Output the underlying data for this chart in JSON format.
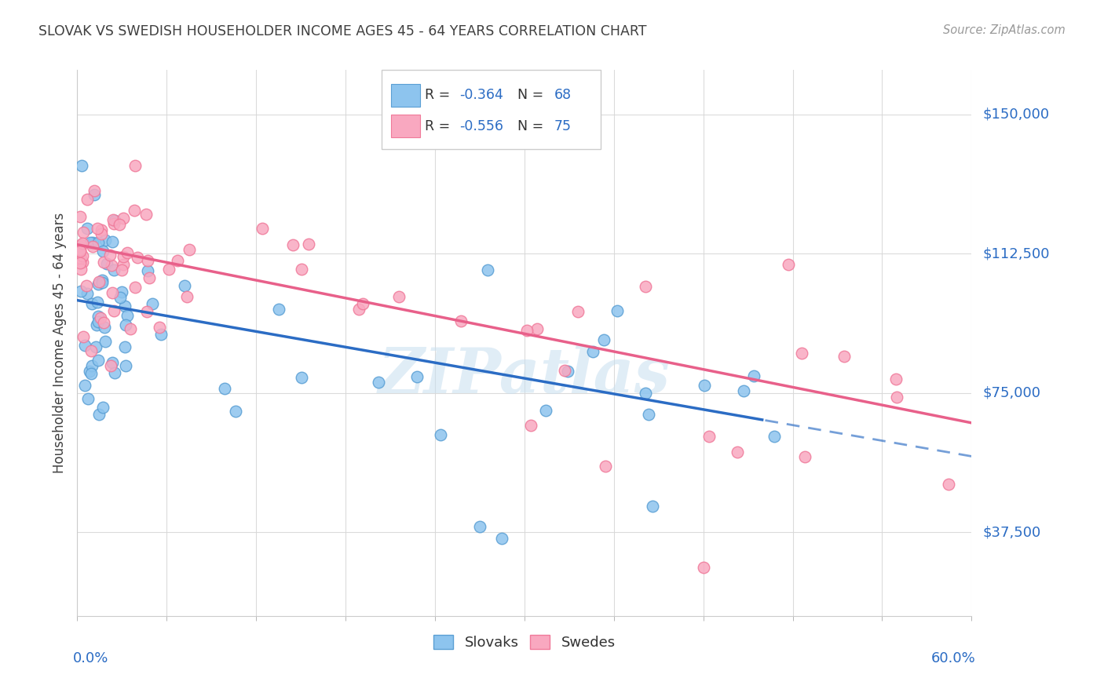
{
  "title": "SLOVAK VS SWEDISH HOUSEHOLDER INCOME AGES 45 - 64 YEARS CORRELATION CHART",
  "source": "Source: ZipAtlas.com",
  "ylabel": "Householder Income Ages 45 - 64 years",
  "ytick_labels": [
    "$37,500",
    "$75,000",
    "$112,500",
    "$150,000"
  ],
  "ytick_values": [
    37500,
    75000,
    112500,
    150000
  ],
  "xmin": 0.0,
  "xmax": 0.6,
  "ymin": 15000,
  "ymax": 162000,
  "legend_slovak_r": "-0.364",
  "legend_slovak_n": "68",
  "legend_swede_r": "-0.556",
  "legend_swede_n": "75",
  "slovak_color": "#8DC4EE",
  "swede_color": "#F9A8C0",
  "slovak_edge": "#5A9FD4",
  "swede_edge": "#F07A9A",
  "blue_line_color": "#2B6CC4",
  "pink_line_color": "#E8608A",
  "blue_line_intercept": 100000,
  "blue_line_slope": -70000,
  "pink_line_intercept": 115000,
  "pink_line_slope": -80000,
  "blue_line_solid_end": 0.46,
  "watermark_text": "ZIPatlas",
  "watermark_color": "#C8DFF0",
  "background_color": "#FFFFFF",
  "grid_color": "#D8D8D8",
  "title_color": "#404040",
  "source_color": "#999999",
  "ylabel_color": "#404040",
  "axis_label_color": "#2B6CC4"
}
